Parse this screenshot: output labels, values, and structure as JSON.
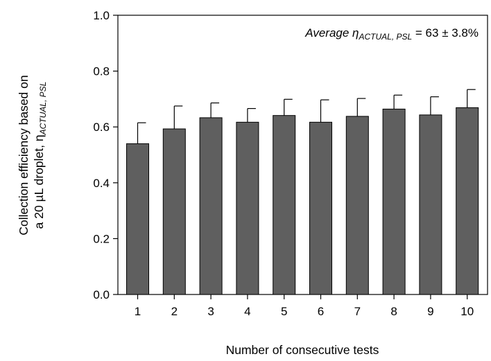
{
  "chart_data": {
    "type": "bar",
    "categories": [
      "1",
      "2",
      "3",
      "4",
      "5",
      "6",
      "7",
      "8",
      "9",
      "10"
    ],
    "values": [
      0.54,
      0.593,
      0.633,
      0.617,
      0.641,
      0.617,
      0.638,
      0.664,
      0.643,
      0.669
    ],
    "error_upper": [
      0.615,
      0.675,
      0.686,
      0.666,
      0.699,
      0.697,
      0.702,
      0.714,
      0.708,
      0.734
    ],
    "ylim": [
      0,
      1.0
    ],
    "yticks": [
      "0.0",
      "0.2",
      "0.4",
      "0.6",
      "0.8",
      "1.0"
    ],
    "xlabel": "Number of consecutive tests",
    "ylabel": {
      "line1": "Collection efficiency based on",
      "line2_prefix": "a 20 µL droplet, η",
      "line2_subscript": "ACTUAL, PSL"
    },
    "annotation": {
      "prefix": "Average η",
      "subscript": "ACTUAL, PSL",
      "suffix": " = 63 ± 3.8%"
    },
    "bar_color": "#5f5f5f",
    "grid": false
  }
}
